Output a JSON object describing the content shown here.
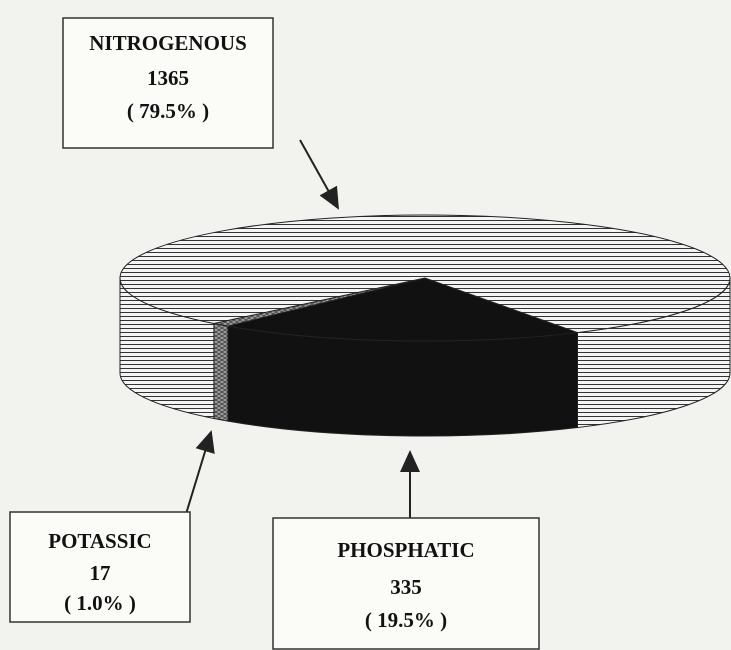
{
  "chart_data": {
    "type": "pie3d",
    "categories": [
      "PHOSPHATIC",
      "POTASSIC",
      "NITROGENOUS"
    ],
    "values": [
      335,
      17,
      1365
    ],
    "percent_labels": [
      "( 19.5% )",
      "( 1.0% )",
      "( 79.5% )"
    ],
    "colors": [
      "#111111",
      "#9a9a9a",
      "#f4f4f4"
    ]
  }
}
